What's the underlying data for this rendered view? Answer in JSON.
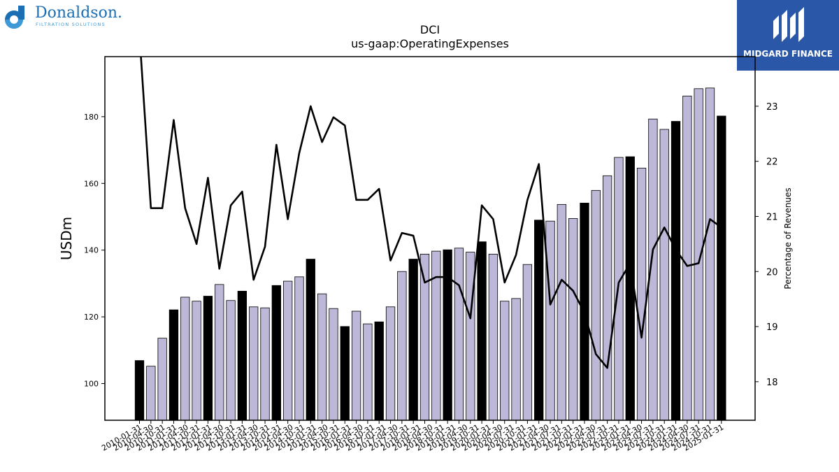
{
  "logos": {
    "left_brand": "Donaldson.",
    "left_tagline": "FILTRATION SOLUTIONS",
    "right_brand": "MIDGARD FINANCE"
  },
  "colors": {
    "bar_fill": "#bdb8d8",
    "bar_highlight": "#000000",
    "line": "#000000",
    "left_logo": "#1b6fb5",
    "right_logo_bg": "#2a57a8"
  },
  "chart_data": {
    "type": "bar",
    "title": "DCI",
    "subtitle": "us-gaap:OperatingExpenses",
    "ylabel": "USDm",
    "y2label": "Percentage of Revenues",
    "ylim": [
      89,
      198
    ],
    "y2lim": [
      17.3,
      23.9
    ],
    "yticks": [
      100,
      120,
      140,
      160,
      180
    ],
    "y2ticks": [
      18,
      19,
      20,
      21,
      22,
      23
    ],
    "categories": [
      "2010-01-31",
      "2010-04-30",
      "2010-07-31",
      "2010-10-31",
      "2011-01-31",
      "2011-04-30",
      "2011-07-31",
      "2011-10-31",
      "2012-01-31",
      "2012-04-30",
      "2012-07-31",
      "2012-10-31",
      "2013-01-31",
      "2013-04-30",
      "2013-07-31",
      "2013-10-31",
      "2014-01-31",
      "2014-04-30",
      "2014-07-31",
      "2014-10-31",
      "2015-01-31",
      "2015-04-30",
      "2015-07-31",
      "2015-10-31",
      "2016-01-31",
      "2016-04-30",
      "2016-07-31",
      "2016-10-31",
      "2017-01-31",
      "2017-04-30",
      "2017-07-31",
      "2017-10-31",
      "2018-01-31",
      "2018-04-30",
      "2018-07-31",
      "2018-10-31",
      "2019-01-31",
      "2019-04-30",
      "2019-07-31",
      "2019-10-31",
      "2020-01-31",
      "2020-04-30",
      "2020-07-31",
      "2020-10-31",
      "2021-01-31",
      "2021-04-30",
      "2021-07-31",
      "2021-10-31",
      "2022-01-31",
      "2022-04-30",
      "2022-07-31",
      "2022-10-31",
      "2023-01-31",
      "2023-04-30",
      "2023-07-31",
      "2023-10-31",
      "2024-01-31",
      "2024-04-30",
      "2024-07-31",
      "2024-10-31",
      "2025-01-31"
    ],
    "visible_xtick_labels": [
      "2010-01-31",
      "2010-04-30",
      "2010-10-31",
      "2011-01-31",
      "2011-04-30",
      "2011-10-31",
      "2012-01-31",
      "2012-04-30",
      "2012-10-31",
      "2013-01-31",
      "2013-04-30",
      "2013-10-31",
      "2014-01-31",
      "2014-04-30",
      "2014-10-31",
      "2015-01-31",
      "2015-04-30",
      "2015-10-31",
      "2016-01-31",
      "2016-04-30",
      "2016-10-31",
      "2017-01-31",
      "2017-04-30",
      "2017-10-31",
      "2018-01-31",
      "2018-04-30",
      "2018-10-31",
      "2019-01-31",
      "2019-04-30",
      "2019-10-31",
      "2020-01-31",
      "2020-04-30",
      "2020-07-31",
      "2020-10-31",
      "2021-01-31",
      "2021-04-30",
      "2021-07-31",
      "2021-10-31",
      "2022-01-31",
      "2022-04-30",
      "2022-07-31",
      "2022-10-31",
      "2023-01-31",
      "2023-04-30",
      "2023-07-31",
      "2023-10-31",
      "2024-01-31",
      "2024-04-30",
      "2024-07-31",
      "2024-10-31",
      "2025-01-31"
    ],
    "bar_values": [
      106.9,
      105.2,
      113.6,
      122.1,
      125.9,
      124.7,
      126.2,
      129.7,
      124.9,
      127.7,
      123.0,
      122.7,
      129.4,
      130.7,
      132.0,
      137.3,
      126.9,
      122.5,
      117.1,
      121.7,
      117.9,
      118.5,
      123.0,
      133.6,
      137.3,
      138.8,
      139.7,
      140.1,
      140.6,
      139.4,
      142.5,
      138.8,
      124.7,
      125.5,
      135.7,
      149.0,
      148.7,
      153.7,
      149.5,
      154.1,
      157.9,
      162.3,
      167.8,
      168.0,
      164.6,
      179.3,
      176.2,
      178.6,
      186.2,
      188.4,
      188.6,
      180.2
    ],
    "bar_highlight": [
      true,
      false,
      false,
      true,
      false,
      false,
      true,
      false,
      false,
      true,
      false,
      false,
      true,
      false,
      false,
      true,
      false,
      false,
      true,
      false,
      false,
      true,
      false,
      false,
      true,
      false,
      false,
      true,
      false,
      false,
      true,
      false,
      false,
      false,
      false,
      true,
      false,
      false,
      false,
      true,
      false,
      false,
      false,
      true,
      false,
      false,
      false,
      true,
      false,
      false,
      false,
      true
    ],
    "line_values": [
      24.3,
      21.15,
      21.15,
      22.75,
      21.15,
      20.5,
      21.7,
      20.05,
      21.2,
      21.45,
      19.85,
      20.45,
      22.3,
      20.95,
      22.15,
      23.0,
      22.35,
      22.8,
      22.65,
      21.3,
      21.3,
      21.5,
      20.2,
      20.7,
      20.65,
      19.8,
      19.9,
      19.9,
      19.75,
      19.15,
      21.2,
      20.95,
      19.8,
      20.3,
      21.3,
      21.95,
      19.4,
      19.85,
      19.65,
      19.25,
      18.5,
      18.25,
      19.8,
      20.15,
      18.8,
      20.4,
      20.8,
      20.4,
      20.1,
      20.15,
      20.95,
      20.8
    ],
    "bar_x_index": [
      0,
      1,
      2,
      3,
      4,
      5,
      6,
      7,
      8,
      9,
      10,
      11,
      12,
      13,
      14,
      15,
      16,
      17,
      18,
      19,
      20,
      21,
      22,
      23,
      24,
      25,
      26,
      27,
      28,
      29,
      30,
      31,
      32,
      33,
      34,
      35,
      36,
      37,
      38,
      39,
      40,
      41,
      42,
      43,
      44,
      45,
      46,
      47,
      48,
      49,
      50,
      51
    ],
    "legend": "none",
    "grid": false
  }
}
